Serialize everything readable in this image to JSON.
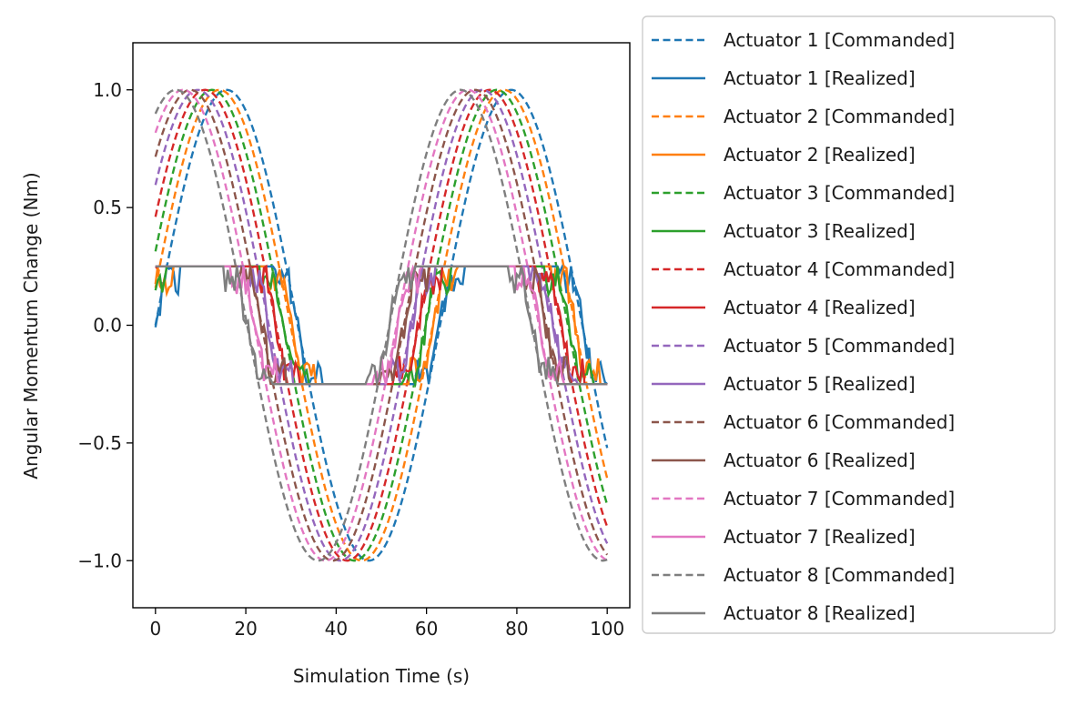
{
  "chart_data": {
    "type": "line",
    "title": "",
    "xlabel": "Simulation Time (s)",
    "ylabel": "Angular Momentum Change (Nm)",
    "xlim": [
      -5,
      105
    ],
    "ylim": [
      -1.2,
      1.2
    ],
    "x_ticks": [
      0,
      20,
      40,
      60,
      80,
      100
    ],
    "y_ticks": [
      1.0,
      0.5,
      0.0,
      -0.5,
      -1.0
    ],
    "x_tick_labels": [
      "0",
      "20",
      "40",
      "60",
      "80",
      "100"
    ],
    "y_tick_labels": [
      "1.0",
      "0.5",
      "0.0",
      "−0.5",
      "−1.0"
    ],
    "grid": false,
    "legend_position": "outside-right",
    "time_range": [
      0,
      100
    ],
    "commanded": {
      "function": "sin",
      "period_s": 63,
      "amplitude": 1.0,
      "actuator_phase_shift_s": [
        0,
        1.6,
        3.2,
        4.8,
        6.4,
        8.0,
        9.6,
        11.2
      ]
    },
    "realized": {
      "saturation_limit": 0.25,
      "description": "commanded value clipped to ±0.25 with noise near transitions"
    },
    "series": [
      {
        "name": "Actuator 1 [Commanded]",
        "actuator": 1,
        "kind": "commanded",
        "color": "#1f77b4"
      },
      {
        "name": "Actuator 1 [Realized]",
        "actuator": 1,
        "kind": "realized",
        "color": "#1f77b4"
      },
      {
        "name": "Actuator 2 [Commanded]",
        "actuator": 2,
        "kind": "commanded",
        "color": "#ff7f0e"
      },
      {
        "name": "Actuator 2 [Realized]",
        "actuator": 2,
        "kind": "realized",
        "color": "#ff7f0e"
      },
      {
        "name": "Actuator 3 [Commanded]",
        "actuator": 3,
        "kind": "commanded",
        "color": "#2ca02c"
      },
      {
        "name": "Actuator 3 [Realized]",
        "actuator": 3,
        "kind": "realized",
        "color": "#2ca02c"
      },
      {
        "name": "Actuator 4 [Commanded]",
        "actuator": 4,
        "kind": "commanded",
        "color": "#d62728"
      },
      {
        "name": "Actuator 4 [Realized]",
        "actuator": 4,
        "kind": "realized",
        "color": "#d62728"
      },
      {
        "name": "Actuator 5 [Commanded]",
        "actuator": 5,
        "kind": "commanded",
        "color": "#9467bd"
      },
      {
        "name": "Actuator 5 [Realized]",
        "actuator": 5,
        "kind": "realized",
        "color": "#9467bd"
      },
      {
        "name": "Actuator 6 [Commanded]",
        "actuator": 6,
        "kind": "commanded",
        "color": "#8c564b"
      },
      {
        "name": "Actuator 6 [Realized]",
        "actuator": 6,
        "kind": "realized",
        "color": "#8c564b"
      },
      {
        "name": "Actuator 7 [Commanded]",
        "actuator": 7,
        "kind": "commanded",
        "color": "#e377c2"
      },
      {
        "name": "Actuator 7 [Realized]",
        "actuator": 7,
        "kind": "realized",
        "color": "#e377c2"
      },
      {
        "name": "Actuator 8 [Commanded]",
        "actuator": 8,
        "kind": "commanded",
        "color": "#7f7f7f"
      },
      {
        "name": "Actuator 8 [Realized]",
        "actuator": 8,
        "kind": "realized",
        "color": "#7f7f7f"
      }
    ]
  }
}
